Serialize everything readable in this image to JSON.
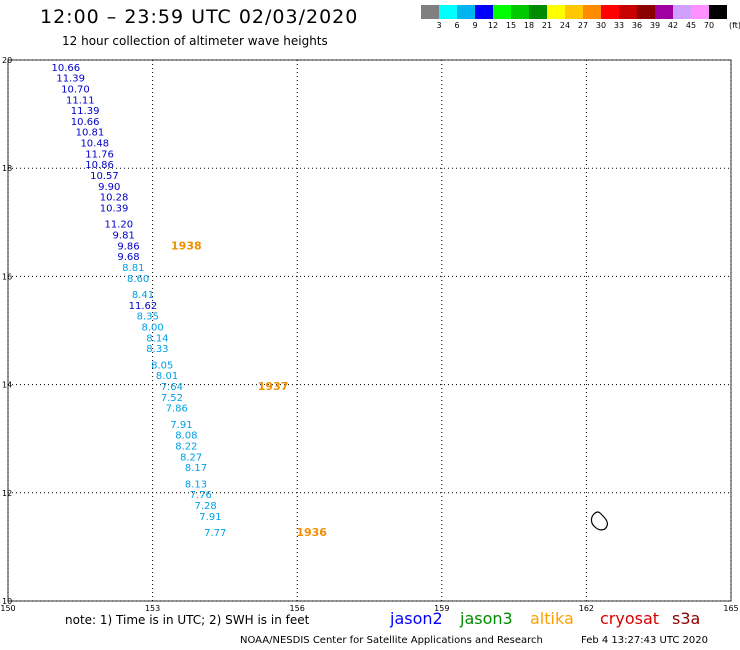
{
  "header": {
    "title": "12:00 – 23:59 UTC 02/03/2020",
    "subtitle": "12 hour collection of altimeter wave heights"
  },
  "color_scale": {
    "unit": "(ft)",
    "swatches": [
      "#808080",
      "#00ffff",
      "#00b4f0",
      "#0000ff",
      "#00ff00",
      "#00c800",
      "#008c00",
      "#ffff00",
      "#ffc800",
      "#ff8c00",
      "#ff0000",
      "#c80000",
      "#8b0000",
      "#a000a0",
      "#d0a0ff",
      "#ff90ff",
      "#000000"
    ],
    "labels": [
      "3",
      "6",
      "9",
      "12",
      "15",
      "18",
      "21",
      "24",
      "27",
      "30",
      "33",
      "36",
      "39",
      "42",
      "45",
      "70"
    ]
  },
  "map": {
    "lon_ticks": [
      "150",
      "153",
      "156",
      "159",
      "162",
      "165"
    ],
    "lat_ticks": [
      "20",
      "18",
      "16",
      "14",
      "12",
      "10"
    ],
    "lon_range": [
      150,
      165
    ],
    "lat_range": [
      10,
      20
    ],
    "gridlines": "dotted"
  },
  "observations": [
    {
      "lon": 151.2,
      "lat": 19.8,
      "value": "10.66",
      "color": "#0000c8"
    },
    {
      "lon": 151.3,
      "lat": 19.6,
      "value": "11.39",
      "color": "#0000c8"
    },
    {
      "lon": 151.4,
      "lat": 19.4,
      "value": "10.70",
      "color": "#0000c8"
    },
    {
      "lon": 151.5,
      "lat": 19.2,
      "value": "11.11",
      "color": "#0000c8"
    },
    {
      "lon": 151.6,
      "lat": 19.0,
      "value": "11.39",
      "color": "#0000c8"
    },
    {
      "lon": 151.6,
      "lat": 18.8,
      "value": "10.66",
      "color": "#0000c8"
    },
    {
      "lon": 151.7,
      "lat": 18.6,
      "value": "10.81",
      "color": "#0000c8"
    },
    {
      "lon": 151.8,
      "lat": 18.4,
      "value": "10.48",
      "color": "#0000c8"
    },
    {
      "lon": 151.9,
      "lat": 18.2,
      "value": "11.76",
      "color": "#0000c8"
    },
    {
      "lon": 151.9,
      "lat": 18.0,
      "value": "10.86",
      "color": "#0000c8"
    },
    {
      "lon": 152.0,
      "lat": 17.8,
      "value": "10.57",
      "color": "#0000c8"
    },
    {
      "lon": 152.1,
      "lat": 17.6,
      "value": "9.90",
      "color": "#0000c8"
    },
    {
      "lon": 152.2,
      "lat": 17.4,
      "value": "10.28",
      "color": "#0000c8"
    },
    {
      "lon": 152.2,
      "lat": 17.2,
      "value": "10.39",
      "color": "#0000c8"
    },
    {
      "lon": 152.3,
      "lat": 16.9,
      "value": "11.20",
      "color": "#0000c8"
    },
    {
      "lon": 152.4,
      "lat": 16.7,
      "value": "9.81",
      "color": "#0000c8"
    },
    {
      "lon": 152.5,
      "lat": 16.5,
      "value": "9.86",
      "color": "#0000c8"
    },
    {
      "lon": 152.5,
      "lat": 16.3,
      "value": "9.68",
      "color": "#0000c8"
    },
    {
      "lon": 152.6,
      "lat": 16.1,
      "value": "8.81",
      "color": "#00a0e6"
    },
    {
      "lon": 152.7,
      "lat": 15.9,
      "value": "8.60",
      "color": "#00a0e6"
    },
    {
      "lon": 152.8,
      "lat": 15.6,
      "value": "8.41",
      "color": "#00a0e6"
    },
    {
      "lon": 152.8,
      "lat": 15.4,
      "value": "11.62",
      "color": "#0000c8"
    },
    {
      "lon": 152.9,
      "lat": 15.2,
      "value": "8.35",
      "color": "#00a0e6"
    },
    {
      "lon": 153.0,
      "lat": 15.0,
      "value": "8.00",
      "color": "#00a0e6"
    },
    {
      "lon": 153.1,
      "lat": 14.8,
      "value": "8.14",
      "color": "#00a0e6"
    },
    {
      "lon": 153.1,
      "lat": 14.6,
      "value": "8.33",
      "color": "#00a0e6"
    },
    {
      "lon": 153.2,
      "lat": 14.3,
      "value": "8.05",
      "color": "#00a0e6"
    },
    {
      "lon": 153.3,
      "lat": 14.1,
      "value": "8.01",
      "color": "#00a0e6"
    },
    {
      "lon": 153.4,
      "lat": 13.9,
      "value": "7.64",
      "color": "#00a0e6"
    },
    {
      "lon": 153.4,
      "lat": 13.7,
      "value": "7.52",
      "color": "#00a0e6"
    },
    {
      "lon": 153.5,
      "lat": 13.5,
      "value": "7.86",
      "color": "#00a0e6"
    },
    {
      "lon": 153.6,
      "lat": 13.2,
      "value": "7.91",
      "color": "#00a0e6"
    },
    {
      "lon": 153.7,
      "lat": 13.0,
      "value": "8.08",
      "color": "#00a0e6"
    },
    {
      "lon": 153.7,
      "lat": 12.8,
      "value": "8.22",
      "color": "#00a0e6"
    },
    {
      "lon": 153.8,
      "lat": 12.6,
      "value": "8.27",
      "color": "#00a0e6"
    },
    {
      "lon": 153.9,
      "lat": 12.4,
      "value": "8.17",
      "color": "#00a0e6"
    },
    {
      "lon": 153.9,
      "lat": 12.1,
      "value": "8.13",
      "color": "#00a0e6"
    },
    {
      "lon": 154.0,
      "lat": 11.9,
      "value": "7.76",
      "color": "#00a0e6"
    },
    {
      "lon": 154.1,
      "lat": 11.7,
      "value": "7.28",
      "color": "#00a0e6"
    },
    {
      "lon": 154.2,
      "lat": 11.5,
      "value": "7.91",
      "color": "#00a0e6"
    },
    {
      "lon": 154.3,
      "lat": 11.2,
      "value": "7.77",
      "color": "#00a0e6"
    }
  ],
  "time_labels": [
    {
      "lon": 153.7,
      "lat": 16.5,
      "value": "1938",
      "color": "#f09000"
    },
    {
      "lon": 155.5,
      "lat": 13.9,
      "value": "1937",
      "color": "#f09000"
    },
    {
      "lon": 156.3,
      "lat": 11.2,
      "value": "1936",
      "color": "#f09000"
    }
  ],
  "footnote": "note: 1) Time is in UTC; 2) SWH is in feet",
  "satellites": [
    {
      "name": "jason2",
      "color": "#0000ff"
    },
    {
      "name": "jason3",
      "color": "#008c00"
    },
    {
      "name": "altika",
      "color": "#ffa000"
    },
    {
      "name": "cryosat",
      "color": "#dc0000"
    },
    {
      "name": "s3a",
      "color": "#8b0000"
    }
  ],
  "credit": "NOAA/NESDIS Center for Satellite Applications and Research",
  "timestamp": "Feb  4 13:27:43 UTC 2020"
}
